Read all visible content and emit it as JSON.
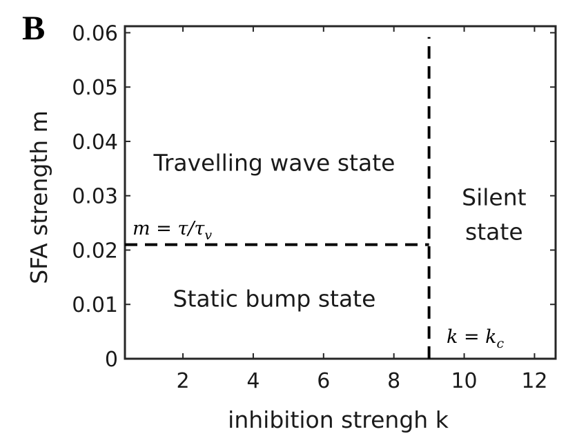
{
  "panel_label": "B",
  "chart_data": {
    "type": "line",
    "xlabel": "inhibition strengh k",
    "ylabel": "SFA strength m",
    "xlim": [
      0.35,
      12.6
    ],
    "ylim": [
      0,
      0.0612
    ],
    "xticks": [
      2,
      4,
      6,
      8,
      10,
      12
    ],
    "xtick_labels": [
      "2",
      "4",
      "6",
      "8",
      "10",
      "12"
    ],
    "yticks": [
      0,
      0.01,
      0.02,
      0.03,
      0.04,
      0.05,
      0.06
    ],
    "ytick_labels": [
      "0",
      "0.01",
      "0.02",
      "0.03",
      "0.04",
      "0.05",
      "0.06"
    ],
    "grid": false,
    "series": [
      {
        "label": "m = τ/τ_v",
        "style": "dashed",
        "color": "#000000",
        "x": [
          0.35,
          9.0
        ],
        "y": [
          0.021,
          0.021
        ]
      },
      {
        "label": "k = k_c",
        "style": "dashed",
        "color": "#000000",
        "x": [
          9.0,
          9.0
        ],
        "y": [
          0,
          0.0592
        ]
      }
    ],
    "region_labels": [
      {
        "lines": [
          "Travelling wave state"
        ],
        "x": 4.6,
        "y": 0.036
      },
      {
        "lines": [
          "Static bump state"
        ],
        "x": 4.6,
        "y": 0.011
      },
      {
        "lines": [
          "Silent",
          "state"
        ],
        "x": 10.85,
        "y": 0.0265
      }
    ]
  }
}
